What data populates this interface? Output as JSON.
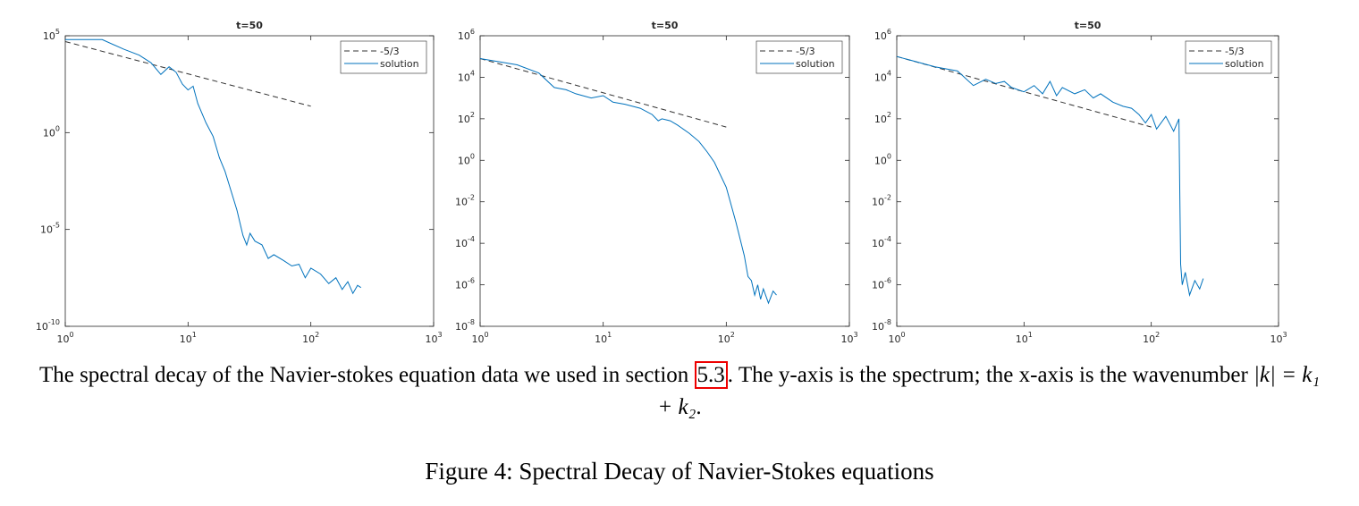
{
  "chart_data": [
    {
      "type": "line",
      "title": "t=50",
      "log_x": true,
      "log_y": true,
      "legend": "upper right",
      "xlim": [
        1,
        1000
      ],
      "ylim": [
        1e-10,
        100000.0
      ],
      "xticks": [
        {
          "value": 1,
          "label": "10^0"
        },
        {
          "value": 10,
          "label": "10^1"
        },
        {
          "value": 100,
          "label": "10^2"
        },
        {
          "value": 1000,
          "label": "10^3"
        }
      ],
      "yticks": [
        {
          "value": 1e-10,
          "label": "10^-10"
        },
        {
          "value": 1e-05,
          "label": "10^-5"
        },
        {
          "value": 1,
          "label": "10^0"
        },
        {
          "value": 100000.0,
          "label": "10^5"
        }
      ],
      "series": [
        {
          "name": "-5/3",
          "color": "#333333",
          "line_style": "dashed",
          "x": [
            1,
            100
          ],
          "values": [
            50000.0,
            23
          ]
        },
        {
          "name": "solution",
          "color": "#0072bd",
          "line_style": "solid",
          "x": [
            1,
            2,
            3,
            4,
            5,
            6,
            7,
            8,
            9,
            10,
            11,
            12,
            14,
            16,
            18,
            20,
            25,
            28,
            30,
            32,
            35,
            40,
            45,
            50,
            60,
            70,
            80,
            90,
            100,
            120,
            140,
            160,
            180,
            200,
            220,
            240,
            256
          ],
          "values": [
            63000.0,
            63000.0,
            20000.0,
            10000.0,
            4000.0,
            1000.0,
            2500.0,
            1300.0,
            320,
            160,
            250,
            32,
            3.2,
            0.63,
            0.05,
            0.01,
            0.0001,
            5e-06,
            1.6e-06,
            6.3e-06,
            2.5e-06,
            1.6e-06,
            3.2e-07,
            5e-07,
            2.5e-07,
            1.3e-07,
            1.6e-07,
            3.2e-08,
            1e-07,
            5e-08,
            1.6e-08,
            3.2e-08,
            8e-09,
            2e-08,
            5e-09,
            1.3e-08,
            1e-08
          ]
        }
      ]
    },
    {
      "type": "line",
      "title": "t=50",
      "log_x": true,
      "log_y": true,
      "legend": "upper right",
      "xlim": [
        1,
        1000
      ],
      "ylim": [
        1e-08,
        1000000.0
      ],
      "xticks": [
        {
          "value": 1,
          "label": "10^0"
        },
        {
          "value": 10,
          "label": "10^1"
        },
        {
          "value": 100,
          "label": "10^2"
        },
        {
          "value": 1000,
          "label": "10^3"
        }
      ],
      "yticks": [
        {
          "value": 1e-08,
          "label": "10^-8"
        },
        {
          "value": 1e-06,
          "label": "10^-6"
        },
        {
          "value": 0.0001,
          "label": "10^-4"
        },
        {
          "value": 0.01,
          "label": "10^-2"
        },
        {
          "value": 1,
          "label": "10^0"
        },
        {
          "value": 100,
          "label": "10^2"
        },
        {
          "value": 10000.0,
          "label": "10^4"
        },
        {
          "value": 1000000.0,
          "label": "10^6"
        }
      ],
      "series": [
        {
          "name": "-5/3",
          "color": "#333333",
          "line_style": "dashed",
          "x": [
            1,
            100
          ],
          "values": [
            80000.0,
            40
          ]
        },
        {
          "name": "solution",
          "color": "#0072bd",
          "line_style": "solid",
          "x": [
            1,
            2,
            3,
            4,
            5,
            6,
            8,
            10,
            12,
            15,
            20,
            25,
            28,
            30,
            35,
            40,
            50,
            60,
            70,
            80,
            100,
            120,
            140,
            150,
            160,
            170,
            180,
            190,
            200,
            220,
            240,
            256
          ],
          "values": [
            80000.0,
            40000.0,
            16000.0,
            3200.0,
            2500.0,
            1600.0,
            1000.0,
            1300.0,
            630,
            500,
            320,
            160,
            80,
            100,
            80,
            50,
            20,
            8,
            2.5,
            0.8,
            0.05,
            0.001,
            2.5e-05,
            2.5e-06,
            1.6e-06,
            3.2e-07,
            1e-06,
            2e-07,
            6.3e-07,
            1.3e-07,
            5e-07,
            3.2e-07
          ]
        }
      ]
    },
    {
      "type": "line",
      "title": "t=50",
      "log_x": true,
      "log_y": true,
      "legend": "upper right",
      "xlim": [
        1,
        1000
      ],
      "ylim": [
        1e-08,
        1000000.0
      ],
      "xticks": [
        {
          "value": 1,
          "label": "10^0"
        },
        {
          "value": 10,
          "label": "10^1"
        },
        {
          "value": 100,
          "label": "10^2"
        },
        {
          "value": 1000,
          "label": "10^3"
        }
      ],
      "yticks": [
        {
          "value": 1e-08,
          "label": "10^-8"
        },
        {
          "value": 1e-06,
          "label": "10^-6"
        },
        {
          "value": 0.0001,
          "label": "10^-4"
        },
        {
          "value": 0.01,
          "label": "10^-2"
        },
        {
          "value": 1,
          "label": "10^0"
        },
        {
          "value": 100,
          "label": "10^2"
        },
        {
          "value": 10000.0,
          "label": "10^4"
        },
        {
          "value": 1000000.0,
          "label": "10^6"
        }
      ],
      "series": [
        {
          "name": "-5/3",
          "color": "#333333",
          "line_style": "dashed",
          "x": [
            1,
            100
          ],
          "values": [
            100000.0,
            40
          ]
        },
        {
          "name": "solution",
          "color": "#0072bd",
          "line_style": "solid",
          "x": [
            1,
            2,
            3,
            4,
            5,
            6,
            7,
            8,
            10,
            12,
            14,
            16,
            18,
            20,
            25,
            30,
            35,
            40,
            50,
            60,
            70,
            80,
            90,
            100,
            110,
            130,
            150,
            165,
            170,
            175,
            185,
            200,
            220,
            240,
            256
          ],
          "values": [
            100000.0,
            32000.0,
            20000.0,
            4000.0,
            8000.0,
            5000.0,
            6300.0,
            3200.0,
            2000.0,
            4000.0,
            1600.0,
            6300.0,
            1300.0,
            3200.0,
            1600.0,
            2500.0,
            1000.0,
            1600.0,
            630,
            400,
            320,
            160,
            63,
            160,
            32,
            130,
            25,
            100,
            1e-05,
            1e-06,
            4e-06,
            3.2e-07,
            1.6e-06,
            6.3e-07,
            2e-06
          ]
        }
      ]
    }
  ],
  "caption": {
    "before": "The spectral decay of the Navier-stokes equation data we used in section ",
    "ref": "5.3",
    "middle": ". The y-axis is the spectrum; the x-axis is the wavenumber ",
    "math": "|k| = k₁ + k₂",
    "end": "."
  },
  "figure_caption": "Figure 4: Spectral Decay of Navier-Stokes equations"
}
